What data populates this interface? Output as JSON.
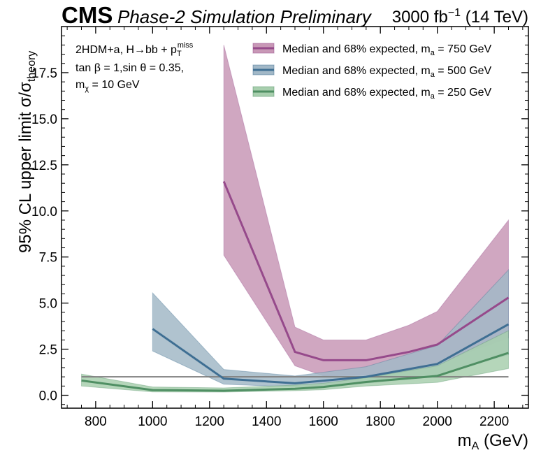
{
  "header": {
    "experiment": "CMS",
    "subtitle": "Phase-2 Simulation Preliminary",
    "lumi_value": "3000 fb",
    "lumi_exp": "−1",
    "lumi_energy": " (14 TeV)"
  },
  "annotation": {
    "line1_main": "2HDM+a, H→bb + p",
    "line1_sub": "T",
    "line1_sup": "miss",
    "line2": "tan β = 1,sin θ = 0.35,",
    "line3_main": "m",
    "line3_sub": "χ",
    "line3_rest": " = 10 GeV"
  },
  "axes": {
    "xlabel_main": "m",
    "xlabel_sub": "A",
    "xlabel_rest": " (GeV)",
    "ylabel_main": "95% CL upper limit σ/σ",
    "ylabel_sub": "theory"
  },
  "chart_data": {
    "type": "line",
    "xlim": [
      680,
      2320
    ],
    "ylim": [
      -0.7,
      20.0
    ],
    "xticks": [
      800,
      1000,
      1200,
      1400,
      1600,
      1800,
      2000,
      2200
    ],
    "xtick_labels": [
      "800",
      "1000",
      "1200",
      "1400",
      "1600",
      "1800",
      "2000",
      "2200"
    ],
    "yticks": [
      0.0,
      2.5,
      5.0,
      7.5,
      10.0,
      12.5,
      15.0,
      17.5
    ],
    "ytick_labels": [
      "0.0",
      "2.5",
      "5.0",
      "7.5",
      "10.0",
      "12.5",
      "15.0",
      "17.5"
    ],
    "grid": false,
    "legend_position": "top-right",
    "reference_line": {
      "y": 1.0,
      "x_range": [
        750,
        2250
      ],
      "color": "#7f7f7f"
    },
    "series": [
      {
        "name_main": "Median and 68% expected, m",
        "name_sub": "a",
        "name_rest": " = 750 GeV",
        "color": "#964a8b",
        "fill": "#c898b6",
        "x": [
          1250,
          1500,
          1600,
          1750,
          1900,
          2000,
          2250
        ],
        "median": [
          11.6,
          2.35,
          1.9,
          1.9,
          2.35,
          2.75,
          5.3
        ],
        "low": [
          7.6,
          1.6,
          1.05,
          1.1,
          1.4,
          1.75,
          3.1
        ],
        "high": [
          19.0,
          3.7,
          3.0,
          3.0,
          3.8,
          4.55,
          9.5
        ]
      },
      {
        "name_main": "Median and 68% expected, m",
        "name_sub": "a",
        "name_rest": " = 500 GeV",
        "color": "#3f6f93",
        "fill": "#a2b8c7",
        "x": [
          1000,
          1250,
          1500,
          1750,
          2000,
          2250
        ],
        "median": [
          3.6,
          0.9,
          0.65,
          1.0,
          1.7,
          3.85
        ],
        "low": [
          2.4,
          0.6,
          0.45,
          0.65,
          1.1,
          2.2
        ],
        "high": [
          5.55,
          1.4,
          1.05,
          1.55,
          2.7,
          6.8
        ]
      },
      {
        "name_main": "Median and 68% expected, m",
        "name_sub": "a",
        "name_rest": " = 250 GeV",
        "color": "#4f8f63",
        "fill": "#a8cfae",
        "x": [
          750,
          1000,
          1250,
          1500,
          1600,
          1750,
          2000,
          2250
        ],
        "median": [
          0.8,
          0.28,
          0.25,
          0.35,
          0.45,
          0.72,
          1.05,
          2.3
        ],
        "low": [
          0.5,
          0.18,
          0.17,
          0.25,
          0.3,
          0.5,
          0.7,
          1.45
        ],
        "high": [
          1.15,
          0.45,
          0.4,
          0.55,
          0.65,
          0.95,
          1.6,
          3.5
        ]
      }
    ]
  }
}
